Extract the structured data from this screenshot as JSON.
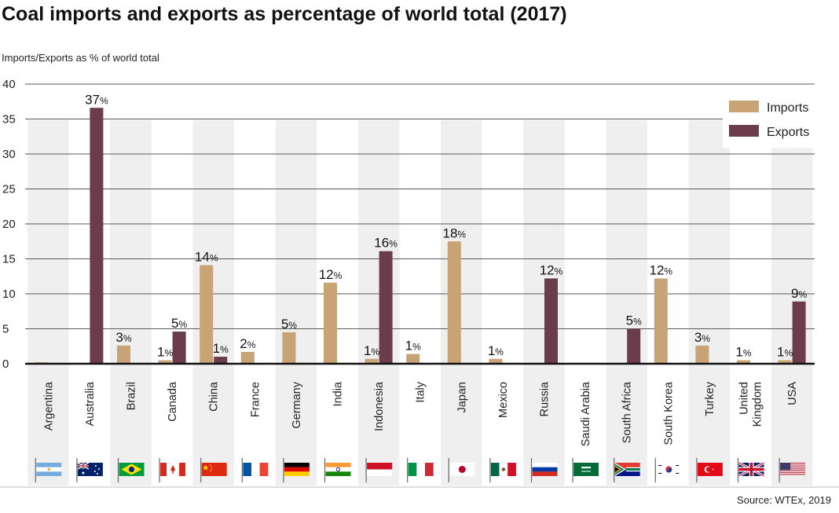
{
  "chart_data": {
    "type": "bar",
    "title": "Coal imports and exports as percentage of world total (2017)",
    "ylabel": "Imports/Exports as % of world total",
    "xlabel": "",
    "ylim": [
      0,
      40
    ],
    "yticks": [
      0,
      5,
      10,
      15,
      20,
      25,
      30,
      35,
      40
    ],
    "grid": true,
    "legend_position": "top-right",
    "source": "Source: WTEx, 2019",
    "categories": [
      "Argentina",
      "Australia",
      "Brazil",
      "Canada",
      "China",
      "France",
      "Germany",
      "India",
      "Indonesia",
      "Italy",
      "Japan",
      "Mexico",
      "Russia",
      "Saudi Arabia",
      "South Africa",
      "South Korea",
      "Turkey",
      "United Kingdom",
      "USA"
    ],
    "series": [
      {
        "name": "Imports",
        "color": "#c8a375",
        "values": [
          0.2,
          0,
          2.6,
          0.5,
          14.1,
          1.7,
          4.5,
          11.6,
          0.7,
          1.4,
          17.5,
          0.7,
          0,
          0,
          0,
          12.2,
          2.6,
          0.5,
          0.5
        ],
        "labels": [
          "",
          "",
          "3",
          "1",
          "14",
          "2",
          "5",
          "12",
          "1",
          "1",
          "18",
          "1",
          "",
          "",
          "",
          "12",
          "3",
          "1",
          "1"
        ]
      },
      {
        "name": "Exports",
        "color": "#6b3c4b",
        "values": [
          0,
          36.6,
          0,
          4.6,
          1.0,
          0,
          0,
          0,
          16.1,
          0,
          0,
          0,
          12.2,
          0,
          5.0,
          0,
          0,
          0,
          8.9
        ],
        "labels": [
          "",
          "37",
          "",
          "5",
          "1",
          "",
          "",
          "",
          "16",
          "",
          "",
          "",
          "12",
          "",
          "5",
          "",
          "",
          "",
          "9"
        ]
      }
    ],
    "flag_icons": [
      "argentina-flag-icon",
      "australia-flag-icon",
      "brazil-flag-icon",
      "canada-flag-icon",
      "china-flag-icon",
      "france-flag-icon",
      "germany-flag-icon",
      "india-flag-icon",
      "indonesia-flag-icon",
      "italy-flag-icon",
      "japan-flag-icon",
      "mexico-flag-icon",
      "russia-flag-icon",
      "saudi-arabia-flag-icon",
      "south-africa-flag-icon",
      "south-korea-flag-icon",
      "turkey-flag-icon",
      "united-kingdom-flag-icon",
      "usa-flag-icon"
    ]
  }
}
